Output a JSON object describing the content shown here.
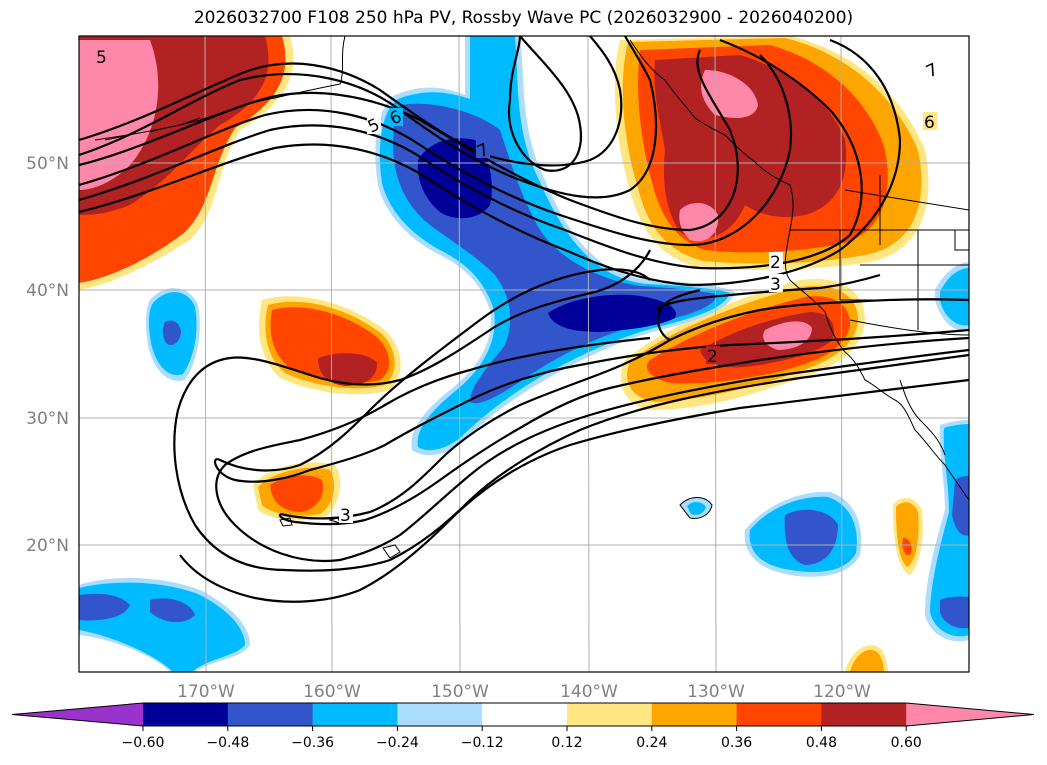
{
  "title": "2026032700 F108 250 hPa PV, Rossby Wave PC (2026032900 - 2026040200)",
  "lat_labels": [
    "50°N",
    "40°N",
    "30°N",
    "20°N"
  ],
  "lon_labels": [
    "170°W",
    "160°W",
    "150°W",
    "140°W",
    "130°W",
    "120°W"
  ],
  "colorbar": {
    "ticks": [
      "−0.60",
      "−0.48",
      "−0.36",
      "−0.24",
      "−0.12",
      "0.12",
      "0.24",
      "0.36",
      "0.48",
      "0.60"
    ],
    "colors": [
      "#9933cc",
      "#000099",
      "#3355cc",
      "#00bbff",
      "#aaddff",
      "#ffffff",
      "#ffe680",
      "#ffa500",
      "#ff4500",
      "#b22222",
      "#ff88aa"
    ]
  },
  "contour_labels": [
    "5",
    "6",
    "7",
    "2",
    "3",
    "2",
    "3",
    "7",
    "6"
  ],
  "colors": {
    "pink": "#ff88aa",
    "dark_red": "#b22222",
    "orange_red": "#ff4500",
    "orange": "#ffa500",
    "light_yellow": "#ffe680",
    "light_blue": "#aaddff",
    "cyan": "#00bbff",
    "med_blue": "#3355cc",
    "navy": "#000099"
  }
}
